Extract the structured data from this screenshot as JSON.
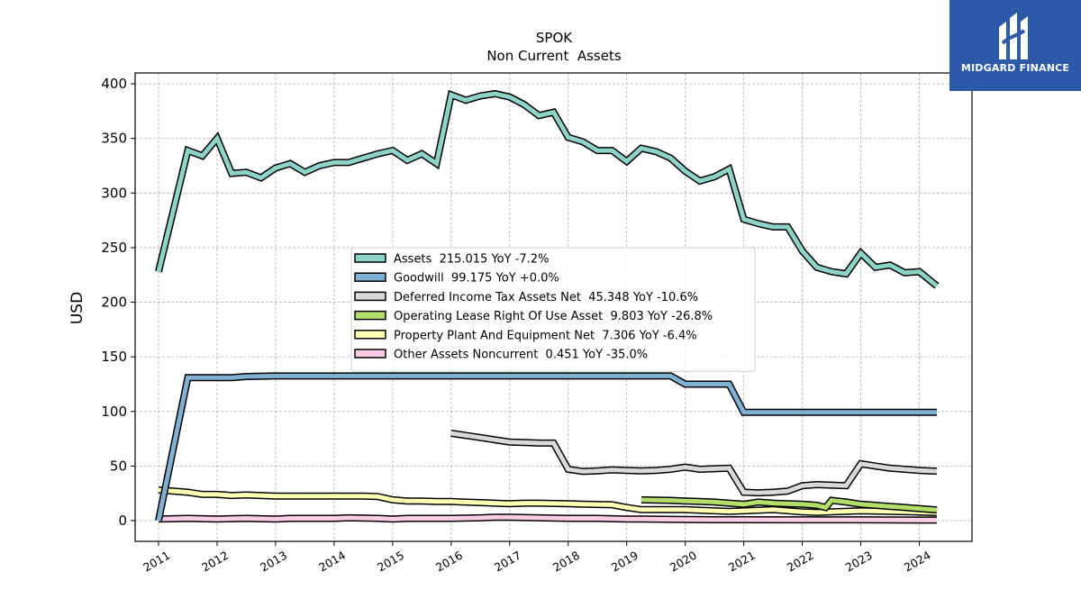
{
  "brand": {
    "name": "MIDGARD FINANCE",
    "bg_color": "#2d5aa8"
  },
  "chart_data": {
    "type": "line",
    "title": "SPOK",
    "subtitle": "Non Current  Assets",
    "xlabel": "",
    "ylabel": "USD",
    "xlim": [
      2010.6,
      2024.9
    ],
    "ylim": [
      -19,
      410
    ],
    "yticks": [
      0,
      50,
      100,
      150,
      200,
      250,
      300,
      350,
      400
    ],
    "xticks": [
      "2011",
      "2012",
      "2013",
      "2014",
      "2015",
      "2016",
      "2017",
      "2018",
      "2019",
      "2020",
      "2021",
      "2022",
      "2023",
      "2024"
    ],
    "grid": true,
    "legend_position": "center",
    "series": [
      {
        "name": "Assets",
        "legend": "Assets  215.015 YoY -7.2%",
        "color": "#8dd3c7",
        "points": [
          [
            2011.0,
            228
          ],
          [
            2011.5,
            339
          ],
          [
            2011.75,
            334
          ],
          [
            2012.0,
            350
          ],
          [
            2012.25,
            318
          ],
          [
            2012.5,
            319
          ],
          [
            2012.75,
            314
          ],
          [
            2013.0,
            323
          ],
          [
            2013.25,
            327
          ],
          [
            2013.5,
            319
          ],
          [
            2013.75,
            325
          ],
          [
            2014.0,
            328
          ],
          [
            2014.25,
            328
          ],
          [
            2014.5,
            332
          ],
          [
            2014.75,
            336
          ],
          [
            2015.0,
            339
          ],
          [
            2015.25,
            330
          ],
          [
            2015.5,
            336
          ],
          [
            2015.75,
            327
          ],
          [
            2016.0,
            390
          ],
          [
            2016.25,
            385
          ],
          [
            2016.5,
            389
          ],
          [
            2016.75,
            391
          ],
          [
            2017.0,
            388
          ],
          [
            2017.25,
            381
          ],
          [
            2017.5,
            371
          ],
          [
            2017.75,
            374
          ],
          [
            2018.0,
            351
          ],
          [
            2018.25,
            347
          ],
          [
            2018.5,
            339
          ],
          [
            2018.75,
            339
          ],
          [
            2019.0,
            329
          ],
          [
            2019.25,
            341
          ],
          [
            2019.5,
            338
          ],
          [
            2019.75,
            332
          ],
          [
            2020.0,
            320
          ],
          [
            2020.25,
            311
          ],
          [
            2020.5,
            315
          ],
          [
            2020.75,
            322
          ],
          [
            2021.0,
            276
          ],
          [
            2021.25,
            272
          ],
          [
            2021.5,
            269
          ],
          [
            2021.75,
            269
          ],
          [
            2022.0,
            247
          ],
          [
            2022.25,
            232
          ],
          [
            2022.5,
            228
          ],
          [
            2022.75,
            226
          ],
          [
            2023.0,
            245
          ],
          [
            2023.25,
            232
          ],
          [
            2023.5,
            234
          ],
          [
            2023.75,
            227
          ],
          [
            2024.0,
            228
          ],
          [
            2024.3,
            215
          ]
        ]
      },
      {
        "name": "Goodwill",
        "legend": "Goodwill  99.175 YoY +0.0%",
        "color": "#80b1d3",
        "points": [
          [
            2011.0,
            0
          ],
          [
            2011.5,
            131
          ],
          [
            2012.0,
            131
          ],
          [
            2012.25,
            131
          ],
          [
            2012.5,
            132
          ],
          [
            2013.0,
            132.5
          ],
          [
            2014.0,
            132.5
          ],
          [
            2015.0,
            132.5
          ],
          [
            2016.0,
            132.5
          ],
          [
            2017.0,
            132.5
          ],
          [
            2018.0,
            132.5
          ],
          [
            2019.0,
            132.5
          ],
          [
            2019.75,
            132.5
          ],
          [
            2020.0,
            125
          ],
          [
            2020.75,
            125
          ],
          [
            2021.0,
            99.2
          ],
          [
            2022.0,
            99.2
          ],
          [
            2023.0,
            99.2
          ],
          [
            2024.3,
            99.2
          ]
        ]
      },
      {
        "name": "Deferred Income Tax Assets Net",
        "legend": "Deferred Income Tax Assets Net  45.348 YoY -10.6%",
        "color": "#d9d9d9",
        "points": [
          [
            2016.0,
            80
          ],
          [
            2016.25,
            78
          ],
          [
            2016.5,
            76
          ],
          [
            2016.75,
            74
          ],
          [
            2017.0,
            72
          ],
          [
            2017.25,
            71.5
          ],
          [
            2017.5,
            71
          ],
          [
            2017.75,
            71
          ],
          [
            2018.0,
            47
          ],
          [
            2018.25,
            45
          ],
          [
            2018.5,
            45.5
          ],
          [
            2018.75,
            46.5
          ],
          [
            2019.0,
            46
          ],
          [
            2019.25,
            45.5
          ],
          [
            2019.5,
            46
          ],
          [
            2019.75,
            47
          ],
          [
            2020.0,
            49
          ],
          [
            2020.25,
            47
          ],
          [
            2020.5,
            47.5
          ],
          [
            2020.75,
            48
          ],
          [
            2021.0,
            26
          ],
          [
            2021.25,
            25.5
          ],
          [
            2021.5,
            26
          ],
          [
            2021.75,
            27
          ],
          [
            2022.0,
            32
          ],
          [
            2022.25,
            33
          ],
          [
            2022.5,
            32.5
          ],
          [
            2022.75,
            32
          ],
          [
            2023.0,
            52
          ],
          [
            2023.25,
            50
          ],
          [
            2023.5,
            48
          ],
          [
            2023.75,
            47
          ],
          [
            2024.0,
            46
          ],
          [
            2024.3,
            45.3
          ]
        ]
      },
      {
        "name": "Operating Lease Right Of Use Asset",
        "legend": "Operating Lease Right Of Use Asset  9.803 YoY -26.8%",
        "color": "#b3de69",
        "points": [
          [
            2019.25,
            19
          ],
          [
            2019.5,
            18.8
          ],
          [
            2019.75,
            18.5
          ],
          [
            2020.0,
            18
          ],
          [
            2020.25,
            17.5
          ],
          [
            2020.5,
            17
          ],
          [
            2020.75,
            16
          ],
          [
            2021.0,
            15
          ],
          [
            2021.25,
            17
          ],
          [
            2021.5,
            16
          ],
          [
            2021.75,
            15.5
          ],
          [
            2022.0,
            15
          ],
          [
            2022.25,
            14
          ],
          [
            2022.4,
            12
          ],
          [
            2022.5,
            18.5
          ],
          [
            2022.75,
            17
          ],
          [
            2023.0,
            15
          ],
          [
            2023.25,
            14
          ],
          [
            2023.5,
            13
          ],
          [
            2023.75,
            12
          ],
          [
            2024.0,
            11
          ],
          [
            2024.3,
            9.8
          ]
        ]
      },
      {
        "name": "Property Plant And Equipment Net",
        "legend": "Property Plant And Equipment Net  7.306 YoY -6.4%",
        "color": "#ffffb3",
        "points": [
          [
            2011.0,
            28
          ],
          [
            2011.5,
            26
          ],
          [
            2011.75,
            24
          ],
          [
            2012.0,
            24
          ],
          [
            2012.25,
            23
          ],
          [
            2012.5,
            23.5
          ],
          [
            2012.75,
            23
          ],
          [
            2013.0,
            22.5
          ],
          [
            2013.5,
            22.5
          ],
          [
            2014.0,
            22.5
          ],
          [
            2014.5,
            22.5
          ],
          [
            2014.75,
            22
          ],
          [
            2015.0,
            19
          ],
          [
            2015.25,
            18
          ],
          [
            2015.5,
            18
          ],
          [
            2015.75,
            17.5
          ],
          [
            2016.0,
            17.5
          ],
          [
            2016.5,
            16.5
          ],
          [
            2017.0,
            15.5
          ],
          [
            2017.25,
            16
          ],
          [
            2017.5,
            16
          ],
          [
            2018.0,
            15.5
          ],
          [
            2018.25,
            15
          ],
          [
            2018.75,
            14.5
          ],
          [
            2019.0,
            12
          ],
          [
            2019.25,
            10
          ],
          [
            2019.75,
            10
          ],
          [
            2020.0,
            10
          ],
          [
            2020.5,
            9
          ],
          [
            2020.75,
            8.5
          ],
          [
            2021.0,
            9
          ],
          [
            2021.5,
            10
          ],
          [
            2022.0,
            8
          ],
          [
            2022.25,
            7.5
          ],
          [
            2022.5,
            8
          ],
          [
            2023.0,
            9
          ],
          [
            2023.5,
            8.5
          ],
          [
            2024.0,
            7.8
          ],
          [
            2024.3,
            7.3
          ]
        ]
      },
      {
        "name": "Other Assets Noncurrent",
        "legend": "Other Assets Noncurrent  0.451 YoY -35.0%",
        "color": "#fccde5",
        "points": [
          [
            2011.0,
            1.5
          ],
          [
            2011.5,
            2
          ],
          [
            2012.0,
            1.5
          ],
          [
            2012.5,
            2
          ],
          [
            2013.0,
            1.5
          ],
          [
            2013.25,
            2
          ],
          [
            2014.0,
            2
          ],
          [
            2014.25,
            2.5
          ],
          [
            2014.75,
            2
          ],
          [
            2015.0,
            1.5
          ],
          [
            2015.25,
            2
          ],
          [
            2016.0,
            2
          ],
          [
            2016.5,
            2.5
          ],
          [
            2016.75,
            3
          ],
          [
            2017.0,
            3
          ],
          [
            2017.5,
            2.5
          ],
          [
            2018.0,
            2
          ],
          [
            2018.5,
            2
          ],
          [
            2019.0,
            1.5
          ],
          [
            2019.25,
            1.5
          ],
          [
            2020.0,
            1
          ],
          [
            2020.5,
            0.8
          ],
          [
            2021.0,
            0.8
          ],
          [
            2022.0,
            0.7
          ],
          [
            2023.0,
            0.7
          ],
          [
            2024.3,
            0.45
          ]
        ]
      }
    ]
  }
}
